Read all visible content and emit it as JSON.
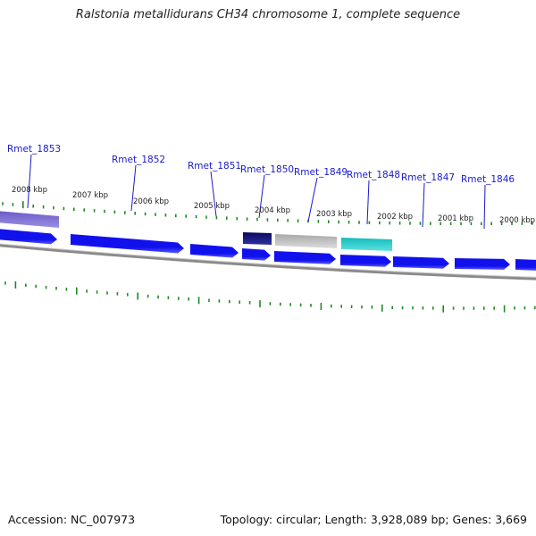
{
  "title": "Ralstonia metallidurans CH34 chromosome 1, complete sequence",
  "footer": {
    "accession": "Accession: NC_007973",
    "summary": "Topology: circular; Length: 3,928,089 bp; Genes: 3,669"
  },
  "colors": {
    "gene_blue": "#1111ee",
    "gene_navy": "#0a0a6e",
    "gene_gray": "#b4b4b4",
    "gene_cyan": "#1cc8c8",
    "gene_lavender": "#7a6ad0",
    "backbone": "#8a8a8a",
    "tick_green": "#1f8a1f",
    "label_blue": "#1a1acc"
  },
  "kbp_labels": [
    "2008 kbp",
    "2007 kbp",
    "2006 kbp",
    "2005 kbp",
    "2004 kbp",
    "2003 kbp",
    "2002 kbp",
    "2001 kbp",
    "2000 kbp"
  ],
  "gene_labels": [
    "Rmet_1853",
    "Rmet_1852",
    "Rmet_1851",
    "Rmet_1850",
    "Rmet_1849",
    "Rmet_1848",
    "Rmet_1847",
    "Rmet_1846"
  ]
}
